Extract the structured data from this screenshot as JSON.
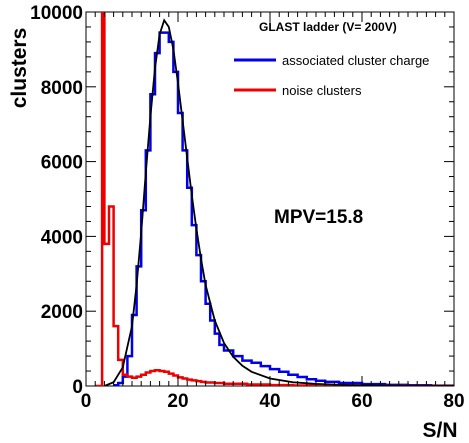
{
  "chart_data": {
    "type": "line",
    "title": "",
    "xlabel": "S/N",
    "ylabel": "clusters",
    "xlim": [
      0,
      80
    ],
    "ylim": [
      0,
      10000
    ],
    "x_ticks": [
      0,
      20,
      40,
      60,
      80
    ],
    "y_ticks": [
      0,
      2000,
      4000,
      6000,
      8000,
      10000
    ],
    "grid": false,
    "legend": {
      "placement": "top-right",
      "title": "GLAST ladder (V= 200V)",
      "entries": [
        {
          "label": "associated cluster charge",
          "color": "#0000ee"
        },
        {
          "label": "noise clusters",
          "color": "#ee0000"
        }
      ]
    },
    "annotation": "MPV=15.8",
    "series": [
      {
        "name": "associated cluster charge",
        "color": "#0000ee",
        "style": "step",
        "x": [
          6,
          7,
          8,
          9,
          10,
          11,
          12,
          13,
          14,
          15,
          16,
          17,
          18,
          19,
          20,
          21,
          22,
          23,
          24,
          25,
          26,
          27,
          28,
          29,
          30,
          32,
          34,
          36,
          38,
          40,
          42,
          44,
          46,
          48,
          50,
          52,
          55,
          60,
          65,
          70,
          75,
          80
        ],
        "y": [
          20,
          80,
          250,
          800,
          1900,
          3200,
          4700,
          6300,
          7800,
          8900,
          9450,
          9450,
          9200,
          8400,
          7300,
          6300,
          5300,
          4300,
          3500,
          2800,
          2200,
          1750,
          1400,
          1100,
          950,
          800,
          680,
          620,
          530,
          450,
          380,
          300,
          240,
          180,
          140,
          110,
          80,
          50,
          30,
          20,
          10,
          5
        ]
      },
      {
        "name": "noise clusters",
        "color": "#ee0000",
        "style": "step",
        "x": [
          2,
          3,
          3.5,
          4,
          4.5,
          5,
          5.5,
          6,
          7,
          8,
          9,
          10,
          11,
          12,
          13,
          14,
          15,
          16,
          17,
          18,
          19,
          20,
          21,
          22,
          23,
          24,
          25,
          26,
          28,
          30,
          35,
          40,
          45,
          50,
          60,
          70,
          80
        ],
        "y": [
          0,
          0,
          10000,
          3800,
          3800,
          4800,
          4800,
          1600,
          700,
          300,
          250,
          220,
          250,
          300,
          360,
          400,
          420,
          400,
          380,
          330,
          280,
          230,
          200,
          170,
          150,
          130,
          110,
          95,
          80,
          60,
          40,
          25,
          15,
          10,
          5,
          3,
          0
        ]
      },
      {
        "name": "fit",
        "color": "#000000",
        "style": "line",
        "x": [
          4,
          6,
          8,
          10,
          11,
          12,
          13,
          14,
          15,
          16,
          17,
          18,
          19,
          20,
          21,
          22,
          23,
          24,
          25,
          26,
          28,
          30,
          32,
          34,
          36,
          40,
          45,
          50,
          55,
          60,
          70,
          80
        ],
        "y": [
          0,
          100,
          500,
          1600,
          2700,
          4100,
          5700,
          7200,
          8500,
          9400,
          9780,
          9600,
          9000,
          8100,
          7100,
          6100,
          5100,
          4200,
          3400,
          2700,
          1750,
          1150,
          780,
          540,
          380,
          200,
          100,
          55,
          30,
          18,
          6,
          2
        ]
      }
    ]
  }
}
